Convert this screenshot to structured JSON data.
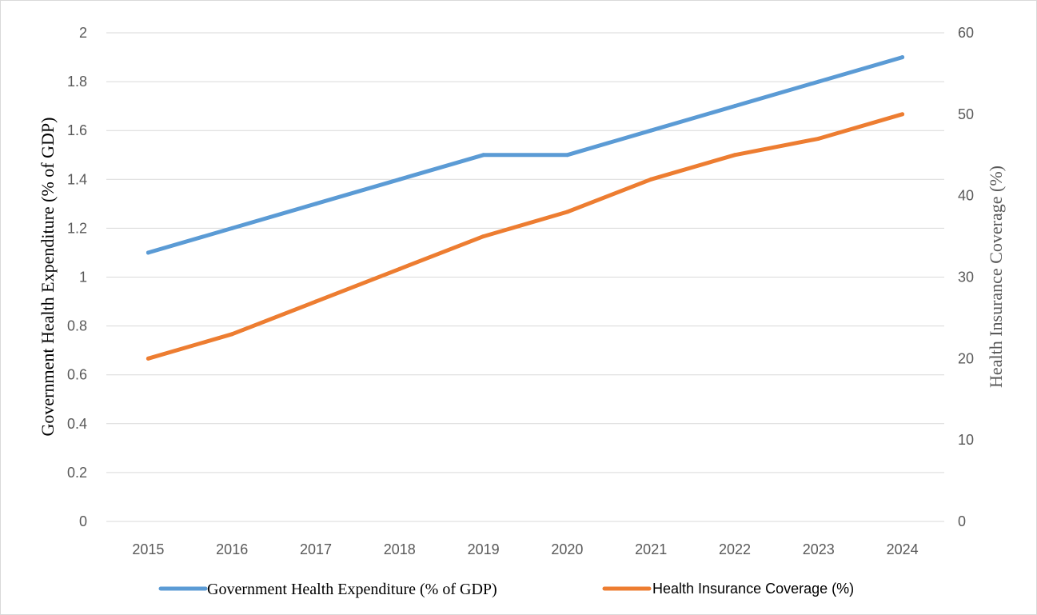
{
  "chart_data": {
    "type": "line",
    "categories": [
      "2015",
      "2016",
      "2017",
      "2018",
      "2019",
      "2020",
      "2021",
      "2022",
      "2023",
      "2024"
    ],
    "series": [
      {
        "name": "Government Health Expenditure (% of GDP)",
        "axis": "left",
        "color": "#5b9bd5",
        "values": [
          1.1,
          1.2,
          1.3,
          1.4,
          1.5,
          1.5,
          1.6,
          1.7,
          1.8,
          1.9
        ]
      },
      {
        "name": "Health Insurance Coverage (%)",
        "axis": "right",
        "color": "#ed7d31",
        "values": [
          20,
          23,
          27,
          31,
          35,
          38,
          42,
          45,
          47,
          50
        ]
      }
    ],
    "y_left": {
      "label": "Government Health Expenditure (% of GDP)",
      "range": [
        0,
        2
      ],
      "ticks": [
        "0",
        "0.2",
        "0.4",
        "0.6",
        "0.8",
        "1",
        "1.2",
        "1.4",
        "1.6",
        "1.8",
        "2"
      ]
    },
    "y_right": {
      "label": "Health Insurance Coverage (%)",
      "range": [
        0,
        60
      ],
      "ticks": [
        "0",
        "10",
        "20",
        "30",
        "40",
        "50",
        "60"
      ]
    },
    "grid": true,
    "legend_position": "bottom",
    "gridline_color": "#d9d9d9",
    "tick_color": "#595959",
    "right_title_color": "#595959"
  }
}
